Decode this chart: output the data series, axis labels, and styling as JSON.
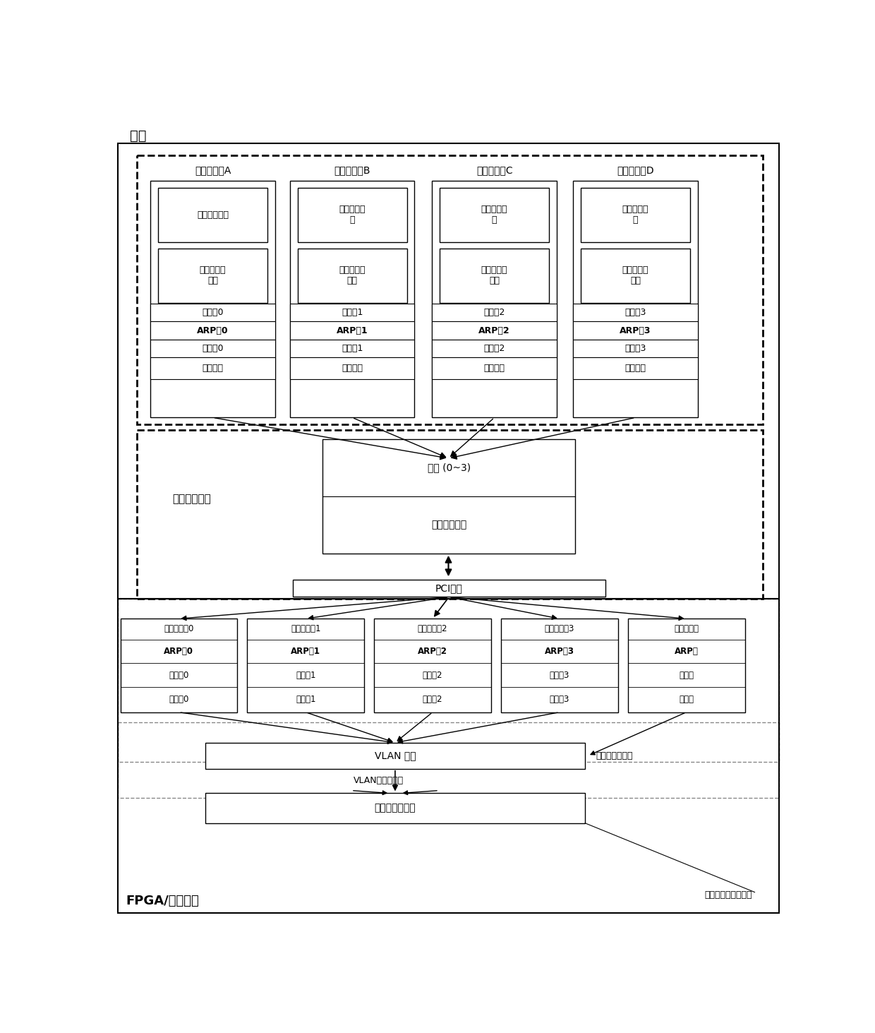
{
  "title_host": "主机",
  "title_fpga": "FPGA/数据平面",
  "vm_units": [
    "虚拟机单元A",
    "虚拟机单元B",
    "虚拟机单元C",
    "虚拟机单元D"
  ],
  "routing_module_single": "路由协议模块",
  "routing_module_multi": "路由协议模\n块",
  "data_module": "数据包处理\n模块",
  "port_tables": [
    "端口表0",
    "端口表1",
    "端口表2",
    "端口表3"
  ],
  "arp_tables_vm": [
    "ARP表0",
    "ARP表1",
    "ARP表2",
    "ARP表3"
  ],
  "route_tables_vm": [
    "路由表0",
    "路由表1",
    "路由表2",
    "路由表3"
  ],
  "net_interface": "网络接口",
  "host_ctrl": "主机控制单元",
  "bridge": "网桥 (0~3)",
  "mgmt_module": "管理配置模块",
  "pci_bus": "PCI总线",
  "reg_interfaces": [
    "寄存器接口0",
    "寄存器接口1",
    "寄存器接口2",
    "寄存器接口3",
    "寄存器接口"
  ],
  "fpga_arp": [
    "ARP表0",
    "ARP表1",
    "ARP表2",
    "ARP表3",
    "ARP表"
  ],
  "fpga_route": [
    "路由表0",
    "路由表1",
    "路由表2",
    "路由表3",
    "路由表"
  ],
  "fpga_port": [
    "端口表0",
    "端口表1",
    "端口表2",
    "端口表3",
    "端口表"
  ],
  "vlan_filter": "VLAN 过滤",
  "vlan_data": "VLAN格式数据包",
  "pkt_type": "数据包类型识别",
  "normal_pkt": "普通格式数据包",
  "fwd_ctrl": "数据包转发控制模块",
  "bg_color": "#ffffff"
}
